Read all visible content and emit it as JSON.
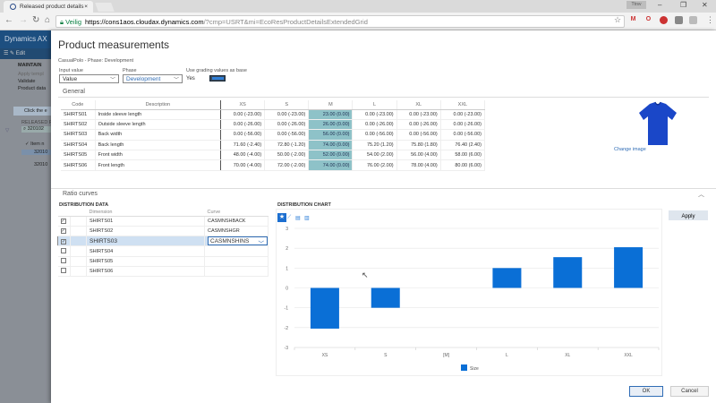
{
  "browser": {
    "tab_title": "Released product details",
    "user_badge": "Ttrsv",
    "security_label": "Veilig",
    "url_host": "https://cons1aos.cloudax.dynamics.com",
    "url_path": "/?cmp=USRT&mi=EcoResProductDetailsExtendedGrid"
  },
  "background": {
    "app_name": "Dynamics AX",
    "edit_label": "Edit",
    "menu_heading": "MAINTAIN",
    "menu_items": [
      "Apply templ",
      "Validate",
      "Product data"
    ],
    "info_bar": "Click the e",
    "list_heading": "RELEASED P",
    "search_value": "320102",
    "column_label": "Item n",
    "rows": [
      "32010",
      "32010"
    ]
  },
  "dialog": {
    "title": "Product measurements",
    "subtitle": "CasualPolo - Phase: Development",
    "input_value": {
      "label": "Input value",
      "value": "Value"
    },
    "phase": {
      "label": "Phase",
      "value": "Development"
    },
    "grading": {
      "label": "Use grading values as base",
      "value": "Yes",
      "on": true
    },
    "general": {
      "heading": "General",
      "columns": [
        "Code",
        "Description",
        "XS",
        "S",
        "M",
        "L",
        "XL",
        "XXL"
      ],
      "rows": [
        [
          "SHIRTS01",
          "Inside sleeve length",
          "0.00 (-23.00)",
          "0.00 (-23.00)",
          "23.00 (0.00)",
          "0.00 (-23.00)",
          "0.00 (-23.00)",
          "0.00 (-23.00)"
        ],
        [
          "SHIRTS02",
          "Outside sleeve length",
          "0.00 (-26.00)",
          "0.00 (-26.00)",
          "26.00 (0.00)",
          "0.00 (-26.00)",
          "0.00 (-26.00)",
          "0.00 (-26.00)"
        ],
        [
          "SHIRTS03",
          "Back width",
          "0.00 (-56.00)",
          "0.00 (-56.00)",
          "56.00 (0.00)",
          "0.00 (-56.00)",
          "0.00 (-56.00)",
          "0.00 (-56.00)"
        ],
        [
          "SHIRTS04",
          "Back length",
          "71.60 (-2.40)",
          "72.80 (-1.20)",
          "74.00 (0.00)",
          "75.20 (1.20)",
          "75.80 (1.80)",
          "76.40 (2.40)"
        ],
        [
          "SHIRTS05",
          "Front width",
          "48.00 (-4.00)",
          "50.00 (-2.00)",
          "52.00 (0.00)",
          "54.00 (2.00)",
          "56.00 (4.00)",
          "58.00 (6.00)"
        ],
        [
          "SHIRTS06",
          "Front length",
          "70.00 (-4.00)",
          "72.00 (-2.00)",
          "74.00 (0.00)",
          "76.00 (2.00)",
          "78.00 (4.00)",
          "80.00 (6.00)"
        ]
      ],
      "change_image": "Change image"
    },
    "ratio": {
      "heading": "Ratio curves",
      "data_heading": "DISTRIBUTION DATA",
      "columns": [
        "Dimension",
        "Curve"
      ],
      "rows": [
        {
          "checked": true,
          "dimension": "SHIRTS01",
          "curve": "CASMNSHBACK"
        },
        {
          "checked": true,
          "dimension": "SHIRTS02",
          "curve": "CASMNSHGR"
        },
        {
          "checked": true,
          "dimension": "SHIRTS03",
          "curve": "CASMNSHINS",
          "selected": true
        },
        {
          "checked": false,
          "dimension": "SHIRTS04",
          "curve": ""
        },
        {
          "checked": false,
          "dimension": "SHIRTS05",
          "curve": ""
        },
        {
          "checked": false,
          "dimension": "SHIRTS06",
          "curve": ""
        }
      ],
      "chart_heading": "DISTRIBUTION CHART",
      "apply": "Apply"
    },
    "ok": "OK",
    "cancel": "Cancel"
  },
  "chart_data": {
    "type": "bar",
    "categories": [
      "XS",
      "S",
      "[M]",
      "L",
      "XL",
      "XXL"
    ],
    "series": [
      {
        "name": "Size",
        "values": [
          -2.05,
          -1.0,
          0,
          1.0,
          1.55,
          2.05
        ],
        "color": "#0a6fd6"
      }
    ],
    "ylim": [
      -3,
      3
    ],
    "yticks": [
      3,
      2,
      1,
      0,
      -1,
      -2,
      -3
    ],
    "grid": true,
    "legend": "bottom"
  }
}
